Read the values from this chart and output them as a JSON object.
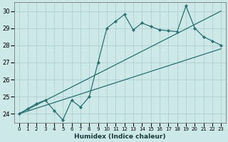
{
  "xlabel": "Humidex (Indice chaleur)",
  "xlim": [
    -0.5,
    23.5
  ],
  "ylim": [
    23.5,
    30.5
  ],
  "yticks": [
    24,
    25,
    26,
    27,
    28,
    29,
    30
  ],
  "xticks": [
    0,
    1,
    2,
    3,
    4,
    5,
    6,
    7,
    8,
    9,
    10,
    11,
    12,
    13,
    14,
    15,
    16,
    17,
    18,
    19,
    20,
    21,
    22,
    23
  ],
  "bg_color": "#cce8e8",
  "grid_color": "#aacccc",
  "line_color": "#2a7070",
  "series1_x": [
    0,
    1,
    2,
    3,
    4,
    5,
    6,
    7,
    8,
    9,
    10,
    11,
    12,
    13,
    14,
    15,
    16,
    17,
    18,
    19,
    20,
    21,
    22,
    23
  ],
  "series1_y": [
    24.0,
    24.3,
    24.6,
    24.8,
    24.2,
    23.65,
    24.8,
    24.4,
    25.0,
    27.0,
    29.0,
    29.4,
    29.8,
    28.9,
    29.3,
    29.1,
    28.9,
    28.85,
    28.8,
    30.3,
    29.0,
    28.5,
    28.25,
    28.0
  ],
  "trend1_x": [
    0,
    23
  ],
  "trend1_y": [
    24.0,
    30.0
  ],
  "trend2_x": [
    0,
    23
  ],
  "trend2_y": [
    24.0,
    27.8
  ]
}
